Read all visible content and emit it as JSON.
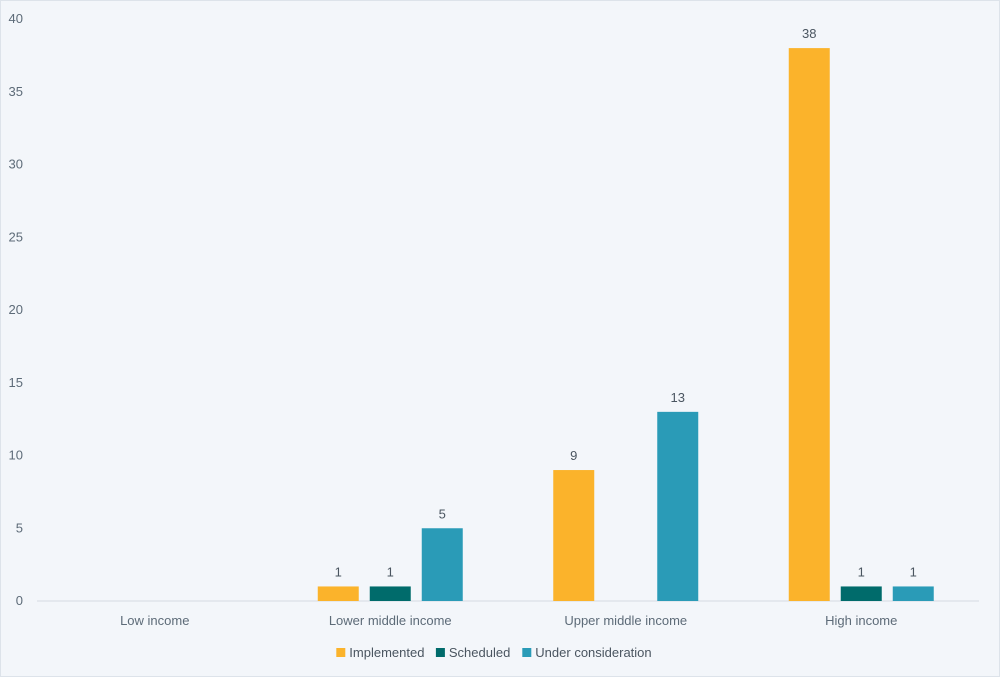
{
  "chart_data": {
    "type": "bar",
    "categories": [
      "Low income",
      "Lower middle income",
      "Upper middle income",
      "High income"
    ],
    "series": [
      {
        "name": "Implemented",
        "color": "#fbb32b",
        "values": [
          null,
          1,
          9,
          38
        ]
      },
      {
        "name": "Scheduled",
        "color": "#006b6b",
        "values": [
          null,
          1,
          null,
          1
        ]
      },
      {
        "name": "Under consideration",
        "color": "#2a9bb7",
        "values": [
          null,
          5,
          13,
          1
        ]
      }
    ],
    "yticks": [
      "0",
      "5",
      "10",
      "15",
      "20",
      "25",
      "30",
      "35",
      "40"
    ],
    "ylim": [
      0,
      40
    ],
    "grid": false,
    "legend": "bottom",
    "title": "",
    "xlabel": "",
    "ylabel": ""
  }
}
